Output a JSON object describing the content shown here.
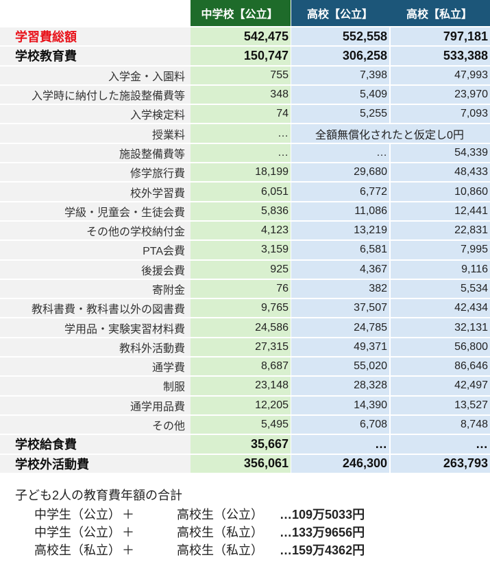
{
  "columns": [
    "中学校【公立】",
    "高校【公立】",
    "高校【私立】"
  ],
  "colors": {
    "header_public_middle": "#1e6b2a",
    "header_high": "#1c5679",
    "col_middle_bg": "#d9f0cf",
    "col_high_bg": "#d7e6f5",
    "total_text": "#e8141c"
  },
  "rows": {
    "total": {
      "label": "学習費総額",
      "values": [
        "542,475",
        "552,558",
        "797,181"
      ]
    },
    "school_edu": {
      "label": "学校教育費",
      "values": [
        "150,747",
        "306,258",
        "533,388"
      ]
    },
    "items": [
      {
        "label": "入学金・入園料",
        "values": [
          "755",
          "7,398",
          "47,993"
        ]
      },
      {
        "label": "入学時に納付した施設整備費等",
        "values": [
          "348",
          "5,409",
          "23,970"
        ]
      },
      {
        "label": "入学検定料",
        "values": [
          "74",
          "5,255",
          "7,093"
        ]
      },
      {
        "label": "授業料",
        "values": [
          "…",
          "全額無償化されたと仮定し0円"
        ]
      },
      {
        "label": "施設整備費等",
        "values": [
          "…",
          "…",
          "54,339"
        ]
      },
      {
        "label": "修学旅行費",
        "values": [
          "18,199",
          "29,680",
          "48,433"
        ]
      },
      {
        "label": "校外学習費",
        "values": [
          "6,051",
          "6,772",
          "10,860"
        ]
      },
      {
        "label": "学級・児童会・生徒会費",
        "values": [
          "5,836",
          "11,086",
          "12,441"
        ]
      },
      {
        "label": "その他の学校納付金",
        "values": [
          "4,123",
          "13,219",
          "22,831"
        ]
      },
      {
        "label": "PTA会費",
        "values": [
          "3,159",
          "6,581",
          "7,995"
        ]
      },
      {
        "label": "後援会費",
        "values": [
          "925",
          "4,367",
          "9,116"
        ]
      },
      {
        "label": "寄附金",
        "values": [
          "76",
          "382",
          "5,534"
        ]
      },
      {
        "label": "教科書費・教科書以外の図書費",
        "values": [
          "9,765",
          "37,507",
          "42,434"
        ]
      },
      {
        "label": "学用品・実験実習材料費",
        "values": [
          "24,586",
          "24,785",
          "32,131"
        ]
      },
      {
        "label": "教科外活動費",
        "values": [
          "27,315",
          "49,371",
          "56,800"
        ]
      },
      {
        "label": "通学費",
        "values": [
          "8,687",
          "55,020",
          "86,646"
        ]
      },
      {
        "label": "制服",
        "values": [
          "23,148",
          "28,328",
          "42,497"
        ]
      },
      {
        "label": "通学用品費",
        "values": [
          "12,205",
          "14,390",
          "13,527"
        ]
      },
      {
        "label": "その他",
        "values": [
          "5,495",
          "6,708",
          "8,748"
        ]
      }
    ],
    "lunch": {
      "label": "学校給食費",
      "values": [
        "35,667",
        "…",
        "…"
      ]
    },
    "outside": {
      "label": "学校外活動費",
      "values": [
        "356,061",
        "246,300",
        "263,793"
      ]
    }
  },
  "footer": {
    "title": "子ども2人の教育費年額の合計",
    "lines": [
      {
        "a": "中学生（公立）",
        "plus": "＋",
        "b": "高校生（公立）",
        "amount": "…109万5033円"
      },
      {
        "a": "中学生（公立）",
        "plus": "＋",
        "b": "高校生（私立）",
        "amount": "…133万9656円"
      },
      {
        "a": "高校生（私立）",
        "plus": "＋",
        "b": "高校生（私立）",
        "amount": "…159万4362円"
      }
    ]
  }
}
